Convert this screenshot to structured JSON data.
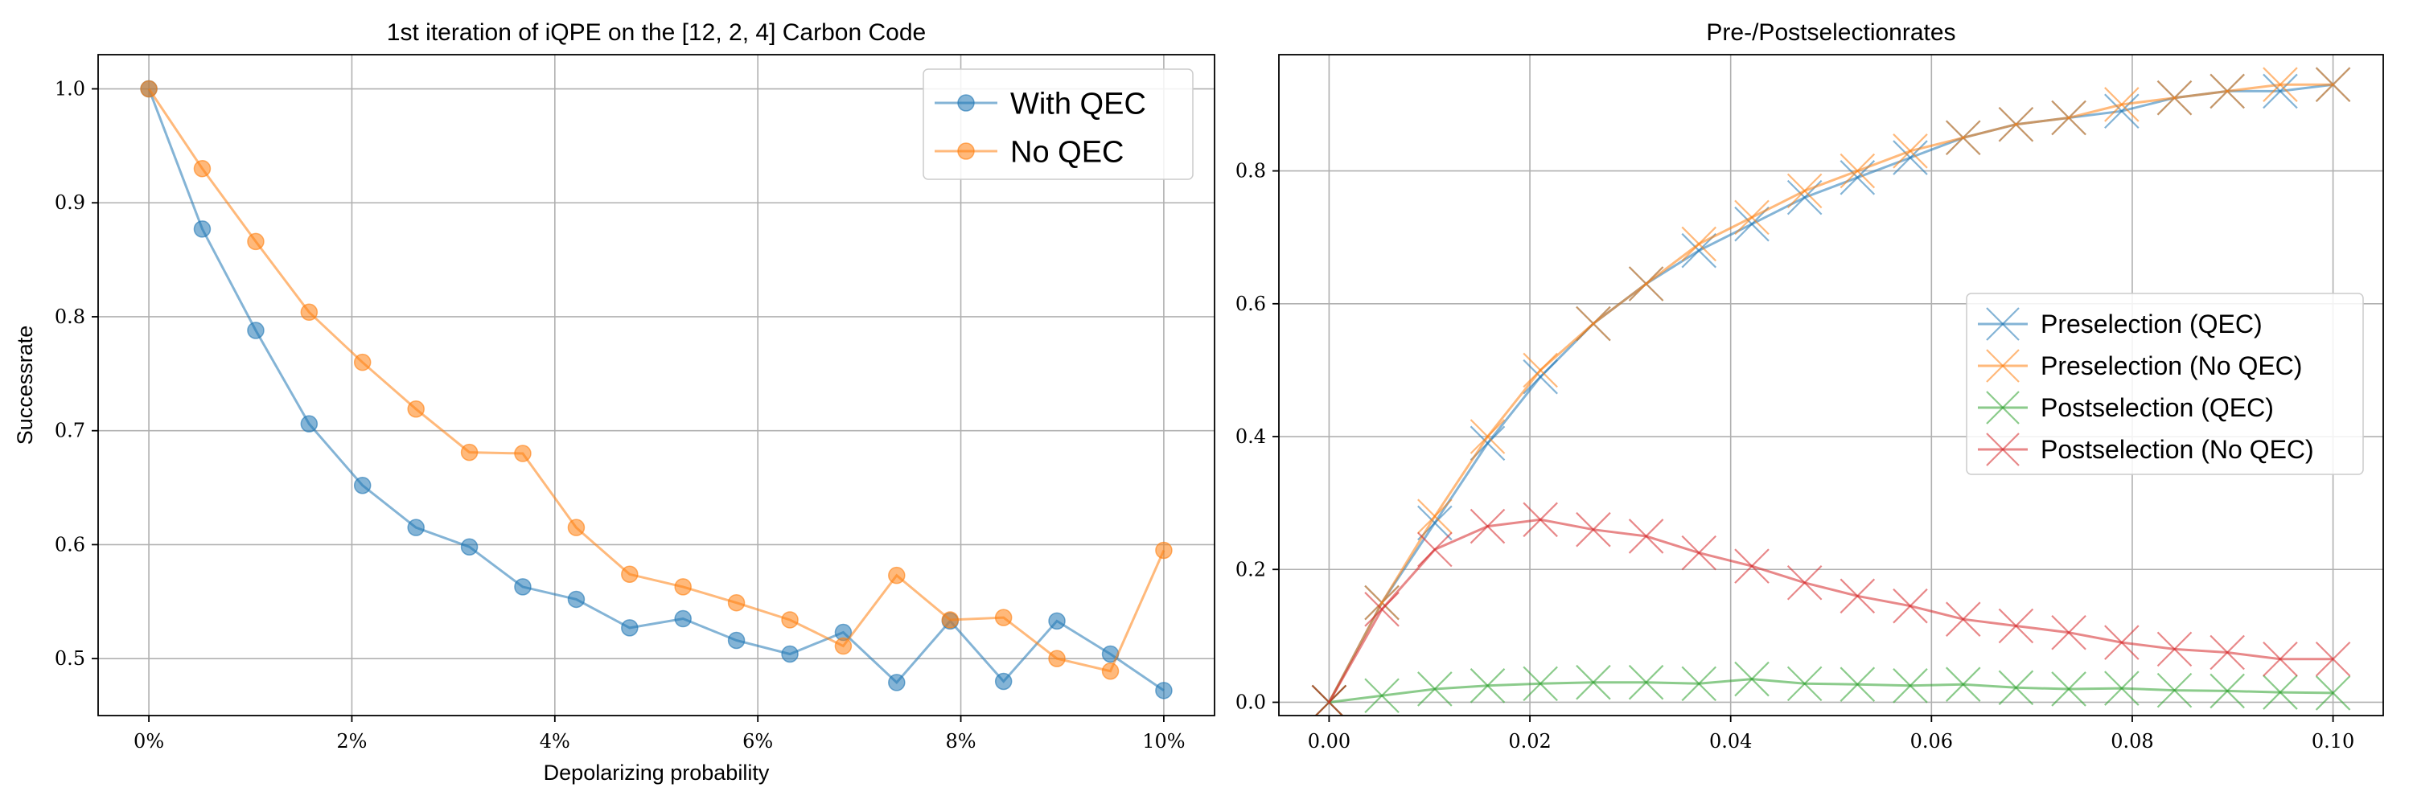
{
  "colors": {
    "blue": "#1f77b4",
    "orange": "#ff7f0e",
    "green": "#2ca02c",
    "red": "#d62728",
    "grid": "#b0b0b0"
  },
  "chart_data": [
    {
      "type": "line",
      "title": "1st iteration of iQPE on the [12, 2, 4] Carbon Code",
      "xlabel": "Depolarizing probability",
      "ylabel": "Successrate",
      "xlim": [
        -0.005,
        0.105
      ],
      "ylim": [
        0.45,
        1.03
      ],
      "xticks": [
        0,
        0.02,
        0.04,
        0.06,
        0.08,
        0.1
      ],
      "xticklabels": [
        "0%",
        "2%",
        "4%",
        "6%",
        "8%",
        "10%"
      ],
      "yticks": [
        0.5,
        0.6,
        0.7,
        0.8,
        0.9,
        1.0
      ],
      "yticklabels": [
        "0.5",
        "0.6",
        "0.7",
        "0.8",
        "0.9",
        "1.0"
      ],
      "grid": true,
      "legend_position": "top-right",
      "x": [
        0,
        0.00526,
        0.01053,
        0.01579,
        0.02105,
        0.02632,
        0.03158,
        0.03684,
        0.04211,
        0.04737,
        0.05263,
        0.05789,
        0.06316,
        0.06842,
        0.07368,
        0.07895,
        0.08421,
        0.08947,
        0.09474,
        0.1
      ],
      "series": [
        {
          "name": "With QEC",
          "color": "#1f77b4",
          "marker": "circle",
          "values": [
            1.0,
            0.877,
            0.788,
            0.706,
            0.652,
            0.615,
            0.598,
            0.563,
            0.552,
            0.527,
            0.535,
            0.516,
            0.504,
            0.523,
            0.479,
            0.533,
            0.48,
            0.533,
            0.504,
            0.472
          ]
        },
        {
          "name": "No QEC",
          "color": "#ff7f0e",
          "marker": "circle",
          "values": [
            1.0,
            0.93,
            0.866,
            0.804,
            0.76,
            0.719,
            0.681,
            0.68,
            0.615,
            0.574,
            0.563,
            0.549,
            0.534,
            0.511,
            0.573,
            0.534,
            0.536,
            0.5,
            0.489,
            0.595
          ]
        }
      ]
    },
    {
      "type": "line",
      "title": "Pre-/Postselectionrates",
      "xlabel": "",
      "ylabel": "",
      "xlim": [
        -0.005,
        0.105
      ],
      "ylim": [
        -0.02,
        0.975
      ],
      "xticks": [
        0,
        0.02,
        0.04,
        0.06,
        0.08,
        0.1
      ],
      "xticklabels": [
        "0.00",
        "0.02",
        "0.04",
        "0.06",
        "0.08",
        "0.10"
      ],
      "yticks": [
        0,
        0.2,
        0.4,
        0.6,
        0.8
      ],
      "yticklabels": [
        "0.0",
        "0.2",
        "0.4",
        "0.6",
        "0.8"
      ],
      "grid": true,
      "legend_position": "center-right",
      "x": [
        0,
        0.00526,
        0.01053,
        0.01579,
        0.02105,
        0.02632,
        0.03158,
        0.03684,
        0.04211,
        0.04737,
        0.05263,
        0.05789,
        0.06316,
        0.06842,
        0.07368,
        0.07895,
        0.08421,
        0.08947,
        0.09474,
        0.1
      ],
      "series": [
        {
          "name": "Preselection (QEC)",
          "color": "#1f77b4",
          "marker": "x",
          "values": [
            0.0,
            0.15,
            0.27,
            0.39,
            0.49,
            0.57,
            0.63,
            0.68,
            0.72,
            0.76,
            0.79,
            0.82,
            0.85,
            0.87,
            0.88,
            0.89,
            0.91,
            0.92,
            0.92,
            0.93
          ]
        },
        {
          "name": "Preselection (No QEC)",
          "color": "#ff7f0e",
          "marker": "x",
          "values": [
            0.0,
            0.15,
            0.28,
            0.4,
            0.5,
            0.57,
            0.63,
            0.69,
            0.73,
            0.77,
            0.8,
            0.83,
            0.85,
            0.87,
            0.88,
            0.9,
            0.91,
            0.92,
            0.93,
            0.93
          ]
        },
        {
          "name": "Postselection (QEC)",
          "color": "#2ca02c",
          "marker": "x",
          "values": [
            0.0,
            0.01,
            0.02,
            0.025,
            0.028,
            0.03,
            0.03,
            0.028,
            0.035,
            0.028,
            0.027,
            0.025,
            0.027,
            0.022,
            0.02,
            0.021,
            0.018,
            0.017,
            0.015,
            0.014
          ]
        },
        {
          "name": "Postselection (No QEC)",
          "color": "#d62728",
          "marker": "x",
          "values": [
            0.0,
            0.14,
            0.23,
            0.265,
            0.275,
            0.26,
            0.25,
            0.225,
            0.205,
            0.18,
            0.16,
            0.145,
            0.125,
            0.115,
            0.105,
            0.09,
            0.08,
            0.075,
            0.065,
            0.065
          ]
        }
      ]
    }
  ]
}
